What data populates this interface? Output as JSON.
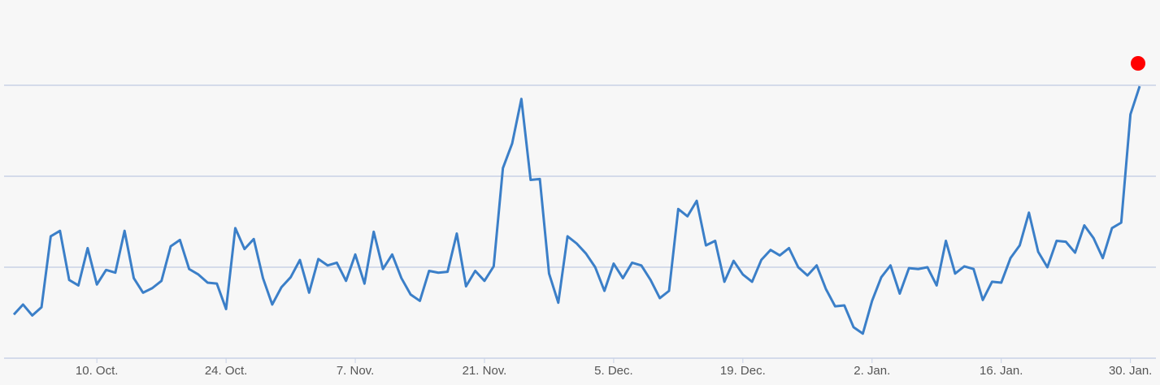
{
  "chart_data": {
    "type": "line",
    "x": [
      0,
      1,
      2,
      3,
      4,
      5,
      6,
      7,
      8,
      9,
      10,
      11,
      12,
      13,
      14,
      15,
      16,
      17,
      18,
      19,
      20,
      21,
      22,
      23,
      24,
      25,
      26,
      27,
      28,
      29,
      30,
      31,
      32,
      33,
      34,
      35,
      36,
      37,
      38,
      39,
      40,
      41,
      42,
      43,
      44,
      45,
      46,
      47,
      48,
      49,
      50,
      51,
      52,
      53,
      54,
      55,
      56,
      57,
      58,
      59,
      60,
      61,
      62,
      63,
      64,
      65,
      66,
      67,
      68,
      69,
      70,
      71,
      72,
      73,
      74,
      75,
      76,
      77,
      78,
      79,
      80,
      81,
      82,
      83,
      84,
      85,
      86,
      87,
      88,
      89,
      90,
      91,
      92,
      93,
      94,
      95,
      96,
      97,
      98,
      99,
      100,
      101,
      102,
      103,
      104,
      105,
      106,
      107,
      108,
      109,
      110,
      111,
      112,
      113,
      114,
      115,
      116,
      117,
      118,
      119,
      120,
      121,
      122
    ],
    "series": [
      {
        "color": "#3b7fc8",
        "values": [
          48,
          59,
          47,
          56,
          134,
          140,
          86,
          80,
          121,
          81,
          97,
          94,
          140,
          88,
          72,
          77,
          85,
          123,
          130,
          98,
          92,
          83,
          82,
          54,
          143,
          120,
          131,
          88,
          59,
          78,
          89,
          108,
          72,
          109,
          102,
          105,
          85,
          114,
          82,
          139,
          98,
          114,
          88,
          70,
          63,
          96,
          94,
          95,
          137,
          79,
          96,
          85,
          101,
          209,
          236,
          285,
          196,
          197,
          93,
          61,
          134,
          126,
          115,
          100,
          74,
          104,
          88,
          105,
          102,
          86,
          66,
          74,
          164,
          156,
          173,
          124,
          129,
          84,
          107,
          92,
          84,
          108,
          119,
          113,
          121,
          100,
          91,
          102,
          76,
          57,
          58,
          34,
          27,
          63,
          89,
          102,
          71,
          99,
          98,
          100,
          80,
          129,
          93,
          101,
          98,
          64,
          84,
          83,
          110,
          124,
          160,
          117,
          100,
          129,
          128,
          116,
          146,
          132,
          110,
          143,
          149,
          268,
          299
        ]
      }
    ],
    "xlim": [
      0,
      122
    ],
    "xticks": [
      {
        "value": 9,
        "label": "10. Oct."
      },
      {
        "value": 23,
        "label": "24. Oct."
      },
      {
        "value": 37,
        "label": "7. Nov."
      },
      {
        "value": 51,
        "label": "21. Nov."
      },
      {
        "value": 65,
        "label": "5. Dec."
      },
      {
        "value": 79,
        "label": "19. Dec."
      },
      {
        "value": 93,
        "label": "2. Jan."
      },
      {
        "value": 107,
        "label": "16. Jan."
      },
      {
        "value": 121,
        "label": "30. Jan."
      }
    ],
    "ylim": [
      0,
      390
    ],
    "yticks": [
      0,
      100,
      200,
      300
    ],
    "grid": true
  }
}
